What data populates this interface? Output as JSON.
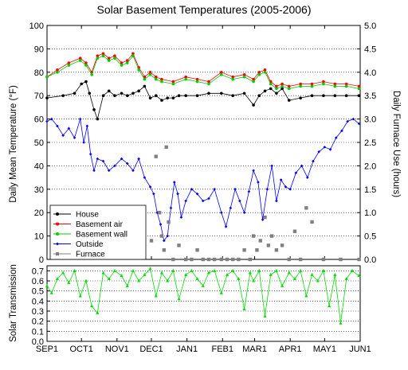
{
  "chart_data": [
    {
      "type": "line",
      "title": "Solar Basement Temperatures (2005-2006)",
      "ylabel": "Daily Mean Temperature (°F)",
      "y2label": "Daily Furnace Use (hours)",
      "ylim": [
        0,
        100
      ],
      "y2lim": [
        0.0,
        5.0
      ],
      "y_ticks": [
        "0",
        "10",
        "20",
        "30",
        "40",
        "50",
        "60",
        "70",
        "80",
        "90",
        "100"
      ],
      "y2_ticks": [
        "0.0",
        "0.5",
        "1.0",
        "1.5",
        "2.0",
        "2.5",
        "3.0",
        "3.5",
        "4.0",
        "4.5",
        "5.0"
      ],
      "x_ticks": [
        "SEP1",
        "OCT1",
        "NOV1",
        "DEC1",
        "JAN1",
        "FEB1",
        "MAR1",
        "APR1",
        "MAY1",
        "JUN1"
      ],
      "grid": "horizontal dotted",
      "legend_position": "lower-left",
      "series": [
        {
          "name": "House",
          "color": "#000000",
          "marker": "circle",
          "axis": "left",
          "x": [
            "09-01",
            "09-15",
            "09-25",
            "10-01",
            "10-05",
            "10-08",
            "10-12",
            "10-15",
            "10-20",
            "10-25",
            "10-30",
            "11-05",
            "11-10",
            "11-15",
            "11-20",
            "11-25",
            "11-30",
            "12-05",
            "12-10",
            "12-15",
            "12-20",
            "12-25",
            "12-31",
            "01-10",
            "01-20",
            "01-31",
            "02-10",
            "02-20",
            "02-28",
            "03-05",
            "03-10",
            "03-15",
            "03-20",
            "03-25",
            "03-31",
            "04-10",
            "04-20",
            "04-30",
            "05-10",
            "05-20",
            "05-31"
          ],
          "values": [
            69,
            70,
            71,
            75,
            76,
            71,
            64,
            60,
            70,
            72,
            70,
            71,
            70,
            71,
            72,
            74,
            69,
            70,
            68,
            69,
            69,
            70,
            70,
            70,
            71,
            71,
            70,
            71,
            66,
            70,
            72,
            73,
            71,
            73,
            68,
            69,
            70,
            70,
            70,
            70,
            70
          ]
        },
        {
          "name": "Basement air",
          "color": "#ff0000",
          "marker": "circle",
          "axis": "left",
          "x": [
            "09-01",
            "09-10",
            "09-20",
            "09-30",
            "10-05",
            "10-10",
            "10-15",
            "10-20",
            "10-25",
            "10-30",
            "11-05",
            "11-10",
            "11-15",
            "11-20",
            "11-25",
            "11-30",
            "12-05",
            "12-10",
            "12-20",
            "12-31",
            "01-10",
            "01-20",
            "01-31",
            "02-10",
            "02-20",
            "02-28",
            "03-05",
            "03-10",
            "03-15",
            "03-20",
            "03-25",
            "03-31",
            "04-10",
            "04-20",
            "04-30",
            "05-10",
            "05-20",
            "05-31"
          ],
          "values": [
            78,
            81,
            84,
            86,
            84,
            80,
            87,
            88,
            86,
            87,
            84,
            85,
            88,
            82,
            78,
            80,
            78,
            77,
            76,
            78,
            77,
            76,
            80,
            78,
            79,
            77,
            80,
            81,
            76,
            74,
            75,
            74,
            75,
            75,
            76,
            75,
            75,
            74
          ]
        },
        {
          "name": "Basement wall",
          "color": "#00cc00",
          "marker": "circle",
          "axis": "left",
          "x": [
            "09-01",
            "09-10",
            "09-20",
            "09-30",
            "10-05",
            "10-10",
            "10-15",
            "10-20",
            "10-25",
            "10-30",
            "11-05",
            "11-10",
            "11-15",
            "11-20",
            "11-25",
            "11-30",
            "12-05",
            "12-10",
            "12-20",
            "12-31",
            "01-10",
            "01-20",
            "01-31",
            "02-10",
            "02-20",
            "02-28",
            "03-05",
            "03-10",
            "03-15",
            "03-20",
            "03-25",
            "03-31",
            "04-10",
            "04-20",
            "04-30",
            "05-10",
            "05-20",
            "05-31"
          ],
          "values": [
            78,
            80,
            83,
            85,
            83,
            79,
            86,
            87,
            85,
            86,
            83,
            84,
            87,
            81,
            77,
            79,
            77,
            76,
            75,
            77,
            76,
            75,
            79,
            77,
            78,
            76,
            79,
            80,
            75,
            73,
            74,
            73,
            74,
            74,
            75,
            74,
            74,
            73
          ]
        },
        {
          "name": "Outside",
          "color": "#0000ff",
          "marker": "diamond",
          "axis": "left",
          "x": [
            "09-01",
            "09-05",
            "09-10",
            "09-15",
            "09-20",
            "09-25",
            "09-30",
            "10-03",
            "10-06",
            "10-09",
            "10-12",
            "10-15",
            "10-20",
            "10-25",
            "10-30",
            "11-05",
            "11-10",
            "11-15",
            "11-20",
            "11-25",
            "11-30",
            "12-03",
            "12-06",
            "12-09",
            "12-12",
            "12-15",
            "12-18",
            "12-21",
            "12-24",
            "12-27",
            "12-31",
            "01-05",
            "01-10",
            "01-15",
            "01-20",
            "01-25",
            "01-31",
            "02-04",
            "02-08",
            "02-12",
            "02-16",
            "02-20",
            "02-24",
            "02-28",
            "03-04",
            "03-08",
            "03-12",
            "03-16",
            "03-20",
            "03-24",
            "03-28",
            "04-01",
            "04-06",
            "04-11",
            "04-16",
            "04-21",
            "04-26",
            "05-01",
            "05-06",
            "05-11",
            "05-16",
            "05-21",
            "05-26",
            "05-31"
          ],
          "values": [
            59,
            60,
            57,
            53,
            56,
            52,
            60,
            50,
            57,
            45,
            38,
            43,
            42,
            38,
            40,
            43,
            41,
            38,
            43,
            35,
            31,
            28,
            20,
            15,
            8,
            10,
            22,
            33,
            28,
            18,
            25,
            30,
            28,
            25,
            26,
            30,
            20,
            14,
            22,
            30,
            25,
            20,
            29,
            38,
            33,
            17,
            30,
            40,
            25,
            34,
            31,
            30,
            37,
            40,
            35,
            42,
            46,
            48,
            47,
            52,
            55,
            59,
            60,
            58
          ]
        },
        {
          "name": "Furnace",
          "color": "#808080",
          "marker": "square",
          "axis": "right",
          "x": [
            "12-01",
            "12-05",
            "12-08",
            "12-10",
            "12-12",
            "12-14",
            "12-16",
            "12-20",
            "12-25",
            "12-31",
            "01-05",
            "01-10",
            "01-15",
            "01-20",
            "01-25",
            "01-31",
            "02-05",
            "02-10",
            "02-15",
            "02-20",
            "02-25",
            "02-28",
            "03-03",
            "03-06",
            "03-10",
            "03-13",
            "03-16",
            "03-20",
            "03-25",
            "03-31",
            "04-05",
            "04-10",
            "04-15",
            "04-20",
            "04-30",
            "05-15",
            "05-31"
          ],
          "values": [
            0.4,
            2.2,
            1.0,
            0.5,
            0.2,
            2.4,
            0.8,
            0.0,
            0.3,
            0.0,
            0.0,
            0.2,
            0.0,
            0.0,
            0.0,
            0.0,
            0.0,
            0.0,
            0.0,
            0.2,
            0.0,
            0.5,
            0.2,
            0.4,
            0.9,
            0.3,
            0.5,
            0.2,
            0.3,
            0.0,
            0.6,
            0.0,
            1.1,
            0.8,
            0.0,
            0.0,
            0.0
          ]
        }
      ]
    },
    {
      "type": "line",
      "title": "",
      "ylabel": "Solar Transmission",
      "ylim": [
        0.0,
        0.75
      ],
      "y_ticks": [
        "0.0",
        "0.1",
        "0.2",
        "0.3",
        "0.4",
        "0.5",
        "0.6",
        "0.7"
      ],
      "x_ticks": [
        "SEP1",
        "OCT1",
        "NOV1",
        "DEC1",
        "JAN1",
        "FEB1",
        "MAR1",
        "APR1",
        "MAY1",
        "JUN1"
      ],
      "grid": "horizontal dotted",
      "series": [
        {
          "name": "Solar Transmission",
          "color": "#00dd00",
          "marker": "triangle",
          "x": [
            "09-01",
            "09-05",
            "09-10",
            "09-15",
            "09-20",
            "09-25",
            "09-30",
            "10-05",
            "10-10",
            "10-15",
            "10-20",
            "10-25",
            "10-30",
            "11-05",
            "11-10",
            "11-15",
            "11-20",
            "11-25",
            "11-30",
            "12-05",
            "12-10",
            "12-15",
            "12-20",
            "12-25",
            "12-31",
            "01-05",
            "01-10",
            "01-15",
            "01-20",
            "01-25",
            "01-31",
            "02-05",
            "02-10",
            "02-15",
            "02-20",
            "02-25",
            "02-28",
            "03-05",
            "03-10",
            "03-15",
            "03-20",
            "03-25",
            "03-31",
            "04-05",
            "04-10",
            "04-15",
            "04-20",
            "04-25",
            "04-30",
            "05-05",
            "05-10",
            "05-15",
            "05-20",
            "05-25",
            "05-31"
          ],
          "values": [
            0.55,
            0.48,
            0.62,
            0.68,
            0.58,
            0.7,
            0.45,
            0.6,
            0.35,
            0.28,
            0.68,
            0.62,
            0.7,
            0.65,
            0.55,
            0.7,
            0.6,
            0.66,
            0.72,
            0.45,
            0.68,
            0.6,
            0.7,
            0.42,
            0.66,
            0.7,
            0.62,
            0.55,
            0.68,
            0.7,
            0.48,
            0.66,
            0.7,
            0.62,
            0.32,
            0.68,
            0.6,
            0.7,
            0.25,
            0.66,
            0.7,
            0.55,
            0.68,
            0.62,
            0.7,
            0.45,
            0.66,
            0.6,
            0.7,
            0.35,
            0.66,
            0.18,
            0.62,
            0.7,
            0.65
          ]
        }
      ]
    }
  ]
}
